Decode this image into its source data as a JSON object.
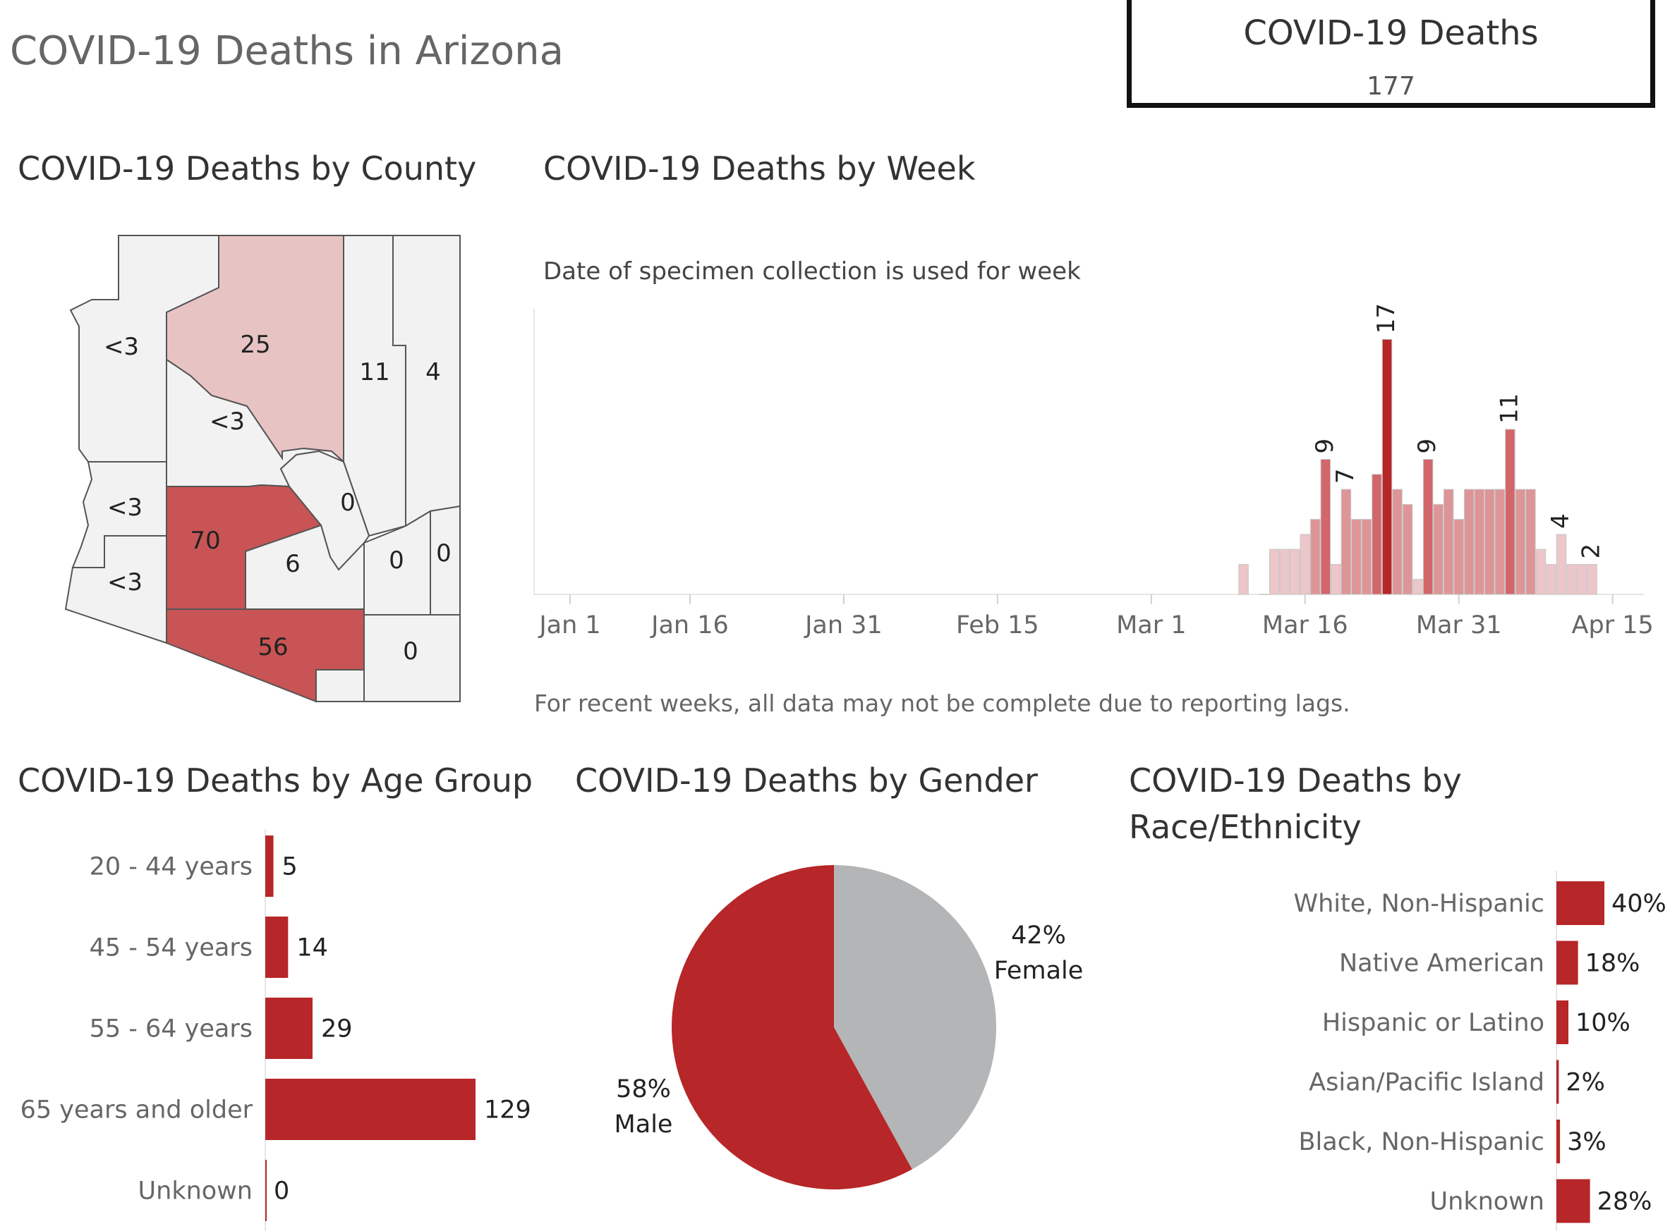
{
  "page": {
    "title": "COVID-19 Deaths in Arizona"
  },
  "kpi": {
    "label": "COVID-19 Deaths",
    "value": "177"
  },
  "county": {
    "title": "COVID-19 Deaths by County",
    "colors": {
      "none": "#f2f2f2",
      "low": "#e8c3c4",
      "high": "#c85455",
      "stroke": "#555555"
    }
  },
  "week": {
    "title": "COVID-19 Deaths by Week",
    "subtitle": "Date of specimen collection is used for week",
    "footnote": "For recent weeks, all data may not be complete due to reporting lags."
  },
  "age": {
    "title": "COVID-19 Deaths by Age Group"
  },
  "gender": {
    "title": "COVID-19 Deaths by Gender"
  },
  "race": {
    "title_line1": "COVID-19 Deaths by",
    "title_line2": "Race/Ethnicity"
  },
  "chart_data": [
    {
      "type": "choropleth",
      "title": "COVID-19 Deaths by County",
      "regions": [
        {
          "name": "Mohave",
          "label": "<3"
        },
        {
          "name": "Coconino",
          "label": "25"
        },
        {
          "name": "Navajo",
          "label": "11"
        },
        {
          "name": "Apache",
          "label": "4"
        },
        {
          "name": "Yavapai",
          "label": "<3"
        },
        {
          "name": "La Paz",
          "label": "<3"
        },
        {
          "name": "Maricopa",
          "label": "70"
        },
        {
          "name": "Gila",
          "label": "0"
        },
        {
          "name": "Yuma",
          "label": "<3"
        },
        {
          "name": "Pinal",
          "label": "6"
        },
        {
          "name": "Graham",
          "label": "0"
        },
        {
          "name": "Greenlee",
          "label": "0"
        },
        {
          "name": "Pima",
          "label": "56"
        },
        {
          "name": "Santa Cruz",
          "label": ""
        },
        {
          "name": "Cochise",
          "label": "0"
        }
      ]
    },
    {
      "type": "bar",
      "title": "COVID-19 Deaths by Week",
      "x_ticks": [
        "Jan 1",
        "Jan 16",
        "Jan 31",
        "Feb 15",
        "Mar 1",
        "Mar 16",
        "Mar 31",
        "Apr 15"
      ],
      "ylim": [
        0,
        18
      ],
      "grid": false,
      "bars": [
        {
          "day": 70,
          "value": 2
        },
        {
          "day": 72,
          "value": 0
        },
        {
          "day": 73,
          "value": 3
        },
        {
          "day": 74,
          "value": 3
        },
        {
          "day": 75,
          "value": 3
        },
        {
          "day": 76,
          "value": 4
        },
        {
          "day": 77,
          "value": 5
        },
        {
          "day": 78,
          "value": 9,
          "label": "9"
        },
        {
          "day": 79,
          "value": 2
        },
        {
          "day": 80,
          "value": 7,
          "label": "7"
        },
        {
          "day": 81,
          "value": 5
        },
        {
          "day": 82,
          "value": 5
        },
        {
          "day": 83,
          "value": 8
        },
        {
          "day": 84,
          "value": 17,
          "label": "17"
        },
        {
          "day": 85,
          "value": 7
        },
        {
          "day": 86,
          "value": 6
        },
        {
          "day": 87,
          "value": 1
        },
        {
          "day": 88,
          "value": 9,
          "label": "9"
        },
        {
          "day": 89,
          "value": 6
        },
        {
          "day": 90,
          "value": 7
        },
        {
          "day": 91,
          "value": 5
        },
        {
          "day": 92,
          "value": 7
        },
        {
          "day": 93,
          "value": 7
        },
        {
          "day": 94,
          "value": 7
        },
        {
          "day": 95,
          "value": 7
        },
        {
          "day": 96,
          "value": 11,
          "label": "11"
        },
        {
          "day": 97,
          "value": 7
        },
        {
          "day": 98,
          "value": 7
        },
        {
          "day": 99,
          "value": 3
        },
        {
          "day": 100,
          "value": 2
        },
        {
          "day": 101,
          "value": 4,
          "label": "4"
        },
        {
          "day": 102,
          "value": 2
        },
        {
          "day": 103,
          "value": 2
        },
        {
          "day": 104,
          "value": 2,
          "label": "2"
        }
      ]
    },
    {
      "type": "bar",
      "title": "COVID-19 Deaths by Age Group",
      "orientation": "horizontal",
      "categories": [
        "20 - 44 years",
        "45 - 54 years",
        "55 - 64 years",
        "65 years and older",
        "Unknown"
      ],
      "values": [
        5,
        14,
        29,
        129,
        0
      ],
      "color": "#b72628"
    },
    {
      "type": "pie",
      "title": "COVID-19 Deaths by Gender",
      "slices": [
        {
          "name": "Female",
          "value": 42,
          "label": "42%",
          "color": "#b3b5b6"
        },
        {
          "name": "Male",
          "value": 58,
          "label": "58%",
          "color": "#b72628"
        }
      ]
    },
    {
      "type": "bar",
      "title": "COVID-19 Deaths by Race/Ethnicity",
      "orientation": "horizontal",
      "categories": [
        "White, Non-Hispanic",
        "Native American",
        "Hispanic or Latino",
        "Asian/Pacific Island",
        "Black, Non-Hispanic",
        "Unknown"
      ],
      "values": [
        40,
        18,
        10,
        2,
        3,
        28
      ],
      "labels": [
        "40%",
        "18%",
        "10%",
        "2%",
        "3%",
        "28%"
      ],
      "color": "#b72628"
    }
  ]
}
